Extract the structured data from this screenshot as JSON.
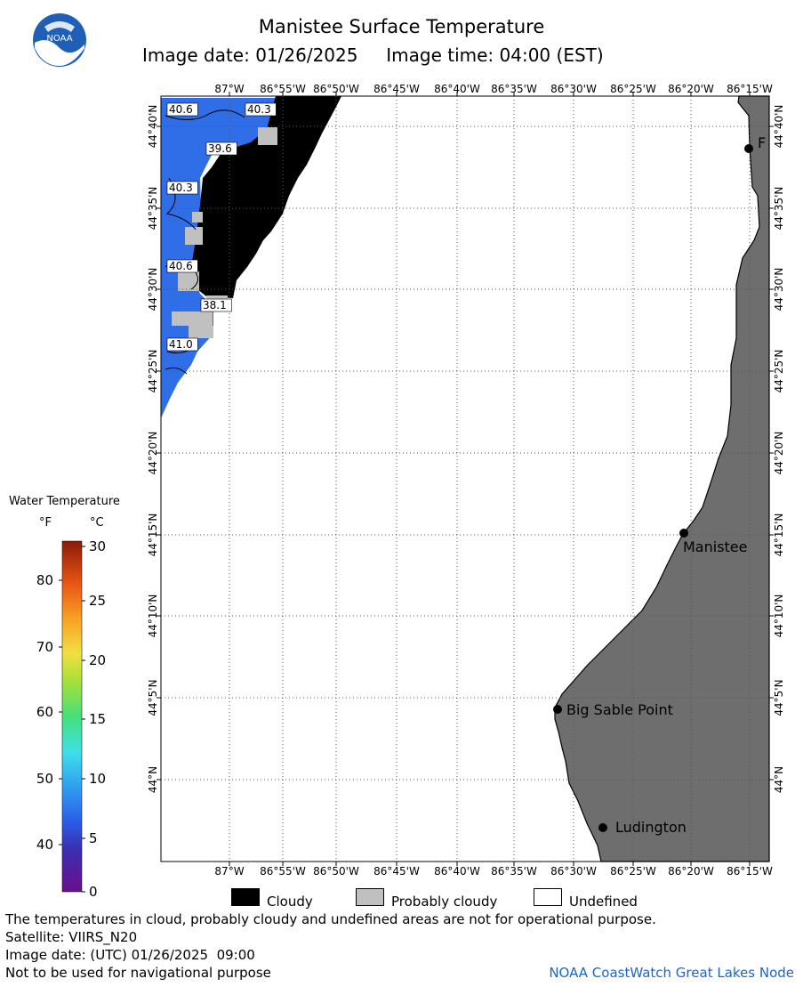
{
  "header": {
    "title": "Manistee Surface Temperature",
    "subtitle": "Image date: 01/26/2025     Image time: 04:00 (EST)"
  },
  "logo": {
    "text": "NOAA",
    "icon": "noaa-logo-icon"
  },
  "map": {
    "lon_labels": [
      "87°W",
      "86°55'W",
      "86°50'W",
      "86°45'W",
      "86°40'W",
      "86°35'W",
      "86°30'W",
      "86°25'W",
      "86°20'W",
      "86°15'W"
    ],
    "lat_labels": [
      "44°40'N",
      "44°35'N",
      "44°30'N",
      "44°25'N",
      "44°20'N",
      "44°15'N",
      "44°10'N",
      "44°5'N",
      "44°N"
    ],
    "isotherm_labels": [
      "40.6",
      "40.3",
      "39.6",
      "40.3",
      "40.6",
      "38.1",
      "41.0"
    ],
    "places": [
      {
        "name": "F"
      },
      {
        "name": "Manistee"
      },
      {
        "name": "Big Sable Point"
      },
      {
        "name": "Ludington"
      }
    ],
    "colors": {
      "cloudy": "#000000",
      "probably_cloudy": "#c0c0c0",
      "land": "#6e6e6e",
      "water": "#2f6ee6",
      "undefined": "#ffffff"
    }
  },
  "colorbar": {
    "title": "Water Temperature",
    "unit_f": "°F",
    "unit_c": "°C",
    "f_labels": [
      "80",
      "70",
      "60",
      "50",
      "40"
    ],
    "c_labels": [
      "30",
      "25",
      "20",
      "15",
      "10",
      "5",
      "0"
    ]
  },
  "legend": [
    {
      "label": "Cloudy",
      "color": "#000000"
    },
    {
      "label": "Probably cloudy",
      "color": "#c0c0c0"
    },
    {
      "label": "Undefined",
      "color": "#ffffff"
    }
  ],
  "footer": {
    "disclaimer": "The temperatures in cloud, probably cloudy and undefined areas are not for operational purpose.",
    "satellite": "Satellite: VIIRS_N20",
    "utc_date": "Image date: (UTC) 01/26/2025  09:00",
    "nav_warning": "Not to be used for navigational purpose",
    "credit": "NOAA CoastWatch Great Lakes Node"
  }
}
